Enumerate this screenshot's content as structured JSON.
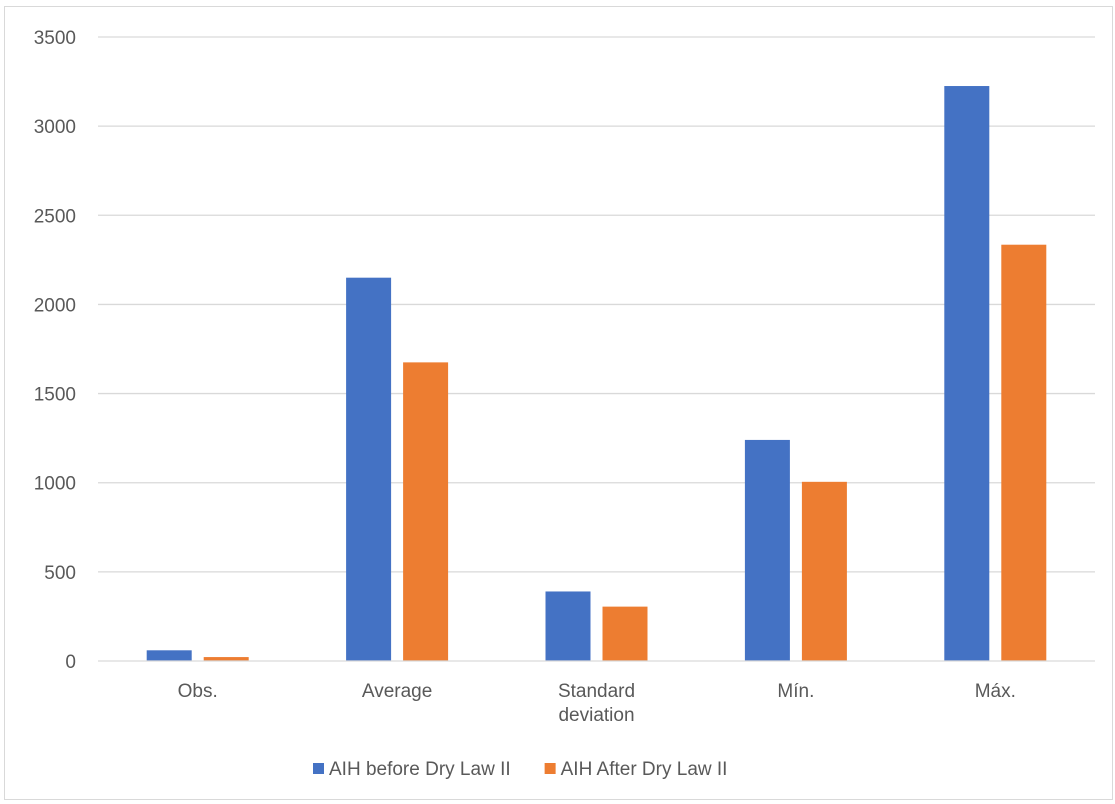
{
  "chart_data": {
    "type": "bar",
    "categories": [
      "Obs.",
      "Average",
      "Standard deviation",
      "Mín.",
      "Máx."
    ],
    "category_lines": [
      [
        "Obs."
      ],
      [
        "Average"
      ],
      [
        "Standard",
        "deviation"
      ],
      [
        "Mín."
      ],
      [
        "Máx."
      ]
    ],
    "series": [
      {
        "name": "AIH before Dry Law II",
        "color": "#4472C4",
        "values": [
          60,
          2150,
          390,
          1240,
          3225
        ]
      },
      {
        "name": "AIH After Dry Law II",
        "color": "#ED7D31",
        "values": [
          22,
          1675,
          305,
          1005,
          2335
        ]
      }
    ],
    "ylim": [
      0,
      3500
    ],
    "yticks": [
      0,
      500,
      1000,
      1500,
      2000,
      2500,
      3000,
      3500
    ],
    "grid": true,
    "grid_color": "#d9d9d9",
    "legend_position": "bottom",
    "title": "",
    "xlabel": "",
    "ylabel": ""
  }
}
